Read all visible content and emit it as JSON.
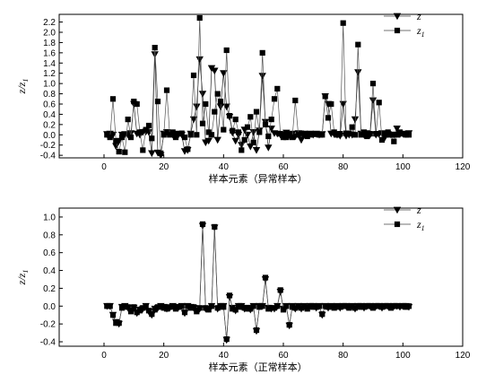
{
  "chart_data": [
    {
      "type": "line",
      "ylabel": "z/z_1",
      "xlabel": "样本元素（异常样本）",
      "xlim": [
        -15,
        120
      ],
      "ylim": [
        -0.45,
        2.35
      ],
      "xticks": [
        0,
        20,
        40,
        60,
        80,
        100,
        120
      ],
      "yticks": [
        -0.4,
        -0.2,
        0.0,
        0.2,
        0.4,
        0.6,
        0.8,
        1.0,
        1.2,
        1.4,
        1.6,
        1.8,
        2.0,
        2.2
      ],
      "legend_position": "top-right",
      "series": [
        {
          "name": "z",
          "marker": "triangle-down",
          "x": [
            1,
            2,
            3,
            4,
            5,
            6,
            7,
            8,
            9,
            10,
            11,
            12,
            13,
            14,
            15,
            16,
            17,
            18,
            19,
            20,
            21,
            22,
            23,
            24,
            25,
            26,
            27,
            28,
            29,
            30,
            31,
            32,
            33,
            34,
            35,
            36,
            37,
            38,
            39,
            40,
            41,
            42,
            43,
            44,
            45,
            46,
            47,
            48,
            49,
            50,
            51,
            52,
            53,
            54,
            55,
            56,
            57,
            58,
            59,
            60,
            61,
            62,
            63,
            64,
            65,
            66,
            67,
            68,
            69,
            70,
            71,
            72,
            73,
            74,
            75,
            76,
            77,
            78,
            79,
            80,
            81,
            82,
            83,
            84,
            85,
            86,
            87,
            88,
            89,
            90,
            91,
            92,
            93,
            94,
            95,
            96,
            97,
            98,
            99,
            100,
            101,
            102
          ],
          "values": [
            0.01,
            0.02,
            0.0,
            -0.22,
            -0.12,
            0.0,
            0.01,
            0.0,
            0.03,
            0.6,
            0.02,
            0.0,
            0.05,
            0.06,
            0.05,
            -0.36,
            1.57,
            -0.35,
            -0.4,
            0.02,
            0.05,
            0.03,
            0.0,
            0.02,
            0.01,
            0.0,
            -0.32,
            -0.3,
            0.02,
            0.3,
            0.55,
            1.47,
            0.8,
            -0.15,
            -0.12,
            1.3,
            1.25,
            -0.1,
            0.55,
            1.2,
            0.55,
            0.35,
            0.04,
            -0.12,
            0.0,
            -0.2,
            0.1,
            0.0,
            -0.23,
            0.05,
            -0.3,
            0.08,
            1.15,
            0.25,
            -0.25,
            0.12,
            0.03,
            0.02,
            0.0,
            0.0,
            0.04,
            0.0,
            0.02,
            -0.03,
            0.03,
            -0.1,
            0.02,
            0.01,
            0.02,
            0.0,
            0.02,
            0.0,
            0.01,
            0.75,
            0.6,
            0.02,
            0.01,
            0.0,
            -0.02,
            0.6,
            -0.02,
            0.0,
            0.0,
            0.3,
            1.22,
            0.02,
            0.0,
            0.03,
            0.0,
            0.67,
            0.0,
            0.01,
            0.03,
            -0.05,
            0.01,
            0.0,
            0.0,
            0.12,
            0.01,
            0.02,
            0.01,
            0.03
          ]
        },
        {
          "name": "z_1",
          "marker": "square",
          "x": [
            1,
            2,
            3,
            4,
            5,
            6,
            7,
            8,
            9,
            10,
            11,
            12,
            13,
            14,
            15,
            16,
            17,
            18,
            19,
            20,
            21,
            22,
            23,
            24,
            25,
            26,
            27,
            28,
            29,
            30,
            31,
            32,
            33,
            34,
            35,
            36,
            37,
            38,
            39,
            40,
            41,
            42,
            43,
            44,
            45,
            46,
            47,
            48,
            49,
            50,
            51,
            52,
            53,
            54,
            55,
            56,
            57,
            58,
            59,
            60,
            61,
            62,
            63,
            64,
            65,
            66,
            67,
            68,
            69,
            70,
            71,
            72,
            73,
            74,
            75,
            76,
            77,
            78,
            79,
            80,
            81,
            82,
            83,
            84,
            85,
            86,
            87,
            88,
            89,
            90,
            91,
            92,
            93,
            94,
            95,
            96,
            97,
            98,
            99,
            100,
            101,
            102
          ],
          "values": [
            0.0,
            -0.05,
            0.7,
            -0.12,
            -0.33,
            -0.05,
            -0.34,
            0.3,
            -0.05,
            0.65,
            0.6,
            0.05,
            -0.3,
            0.1,
            0.18,
            -0.07,
            1.7,
            0.65,
            -0.36,
            0.0,
            0.87,
            0.0,
            0.05,
            -0.05,
            0.02,
            0.03,
            -0.05,
            -0.28,
            0.0,
            1.16,
            0.0,
            2.28,
            0.22,
            0.6,
            0.05,
            0.0,
            0.45,
            0.8,
            0.65,
            0.1,
            1.65,
            0.37,
            0.08,
            0.3,
            0.05,
            -0.3,
            -0.1,
            0.15,
            0.35,
            -0.15,
            0.45,
            0.05,
            1.6,
            0.2,
            -0.03,
            0.3,
            0.7,
            0.9,
            0.02,
            -0.05,
            -0.05,
            -0.02,
            -0.05,
            0.67,
            0.0,
            0.03,
            0.0,
            -0.03,
            0.0,
            0.01,
            0.02,
            0.0,
            0.0,
            0.75,
            0.33,
            0.6,
            0.05,
            0.0,
            0.02,
            2.18,
            0.03,
            0.03,
            0.15,
            0.0,
            1.76,
            0.0,
            0.05,
            -0.03,
            0.02,
            1.0,
            0.02,
            0.63,
            -0.1,
            0.0,
            0.05,
            0.0,
            -0.13,
            0.0,
            0.05,
            0.02,
            0.0,
            0.0
          ]
        }
      ]
    },
    {
      "type": "line",
      "ylabel": "z/z_1",
      "xlabel": "样本元素（正常样本）",
      "xlim": [
        -15,
        120
      ],
      "ylim": [
        -0.45,
        1.1
      ],
      "xticks": [
        0,
        20,
        40,
        60,
        80,
        100,
        120
      ],
      "yticks": [
        -0.4,
        -0.2,
        0.0,
        0.2,
        0.4,
        0.6,
        0.8,
        1.0
      ],
      "legend_position": "top-right",
      "series": [
        {
          "name": "z",
          "marker": "triangle-down",
          "x": [
            1,
            2,
            3,
            4,
            5,
            6,
            7,
            8,
            9,
            10,
            11,
            12,
            13,
            14,
            15,
            16,
            17,
            18,
            19,
            20,
            21,
            22,
            23,
            24,
            25,
            26,
            27,
            28,
            29,
            30,
            31,
            32,
            33,
            34,
            35,
            36,
            37,
            38,
            39,
            40,
            41,
            42,
            43,
            44,
            45,
            46,
            47,
            48,
            49,
            50,
            51,
            52,
            53,
            54,
            55,
            56,
            57,
            58,
            59,
            60,
            61,
            62,
            63,
            64,
            65,
            66,
            67,
            68,
            69,
            70,
            71,
            72,
            73,
            74,
            75,
            76,
            77,
            78,
            79,
            80,
            81,
            82,
            83,
            84,
            85,
            86,
            87,
            88,
            89,
            90,
            91,
            92,
            93,
            94,
            95,
            96,
            97,
            98,
            99,
            100,
            101,
            102
          ],
          "values": [
            0.0,
            0.0,
            -0.1,
            -0.18,
            -0.2,
            -0.01,
            0.0,
            -0.02,
            -0.05,
            -0.02,
            -0.08,
            -0.04,
            -0.03,
            0.0,
            -0.06,
            -0.1,
            -0.03,
            -0.02,
            0.0,
            -0.01,
            -0.03,
            -0.02,
            0.0,
            -0.02,
            -0.01,
            0.0,
            -0.08,
            0.0,
            -0.01,
            -0.02,
            -0.05,
            -0.03,
            0.9,
            -0.03,
            -0.03,
            0.0,
            0.88,
            -0.03,
            0.0,
            0.0,
            -0.38,
            0.1,
            -0.02,
            -0.05,
            0.0,
            0.0,
            -0.03,
            -0.02,
            -0.04,
            0.0,
            -0.28,
            0.0,
            0.0,
            0.3,
            -0.02,
            -0.03,
            -0.03,
            0.0,
            0.16,
            -0.03,
            0.0,
            -0.22,
            0.0,
            -0.03,
            0.0,
            -0.03,
            0.0,
            -0.02,
            0.0,
            0.0,
            -0.02,
            0.0,
            -0.1,
            0.0,
            -0.02,
            0.0,
            -0.01,
            0.0,
            -0.02,
            0.0,
            0.0,
            -0.01,
            0.0,
            -0.03,
            0.0,
            0.0,
            -0.02,
            0.0,
            0.0,
            -0.01,
            0.0,
            0.0,
            -0.02,
            0.0,
            0.0,
            -0.01,
            0.0,
            0.0,
            -0.01,
            0.0,
            0.0,
            -0.01
          ]
        },
        {
          "name": "z_1",
          "marker": "square",
          "x": [
            1,
            2,
            3,
            4,
            5,
            6,
            7,
            8,
            9,
            10,
            11,
            12,
            13,
            14,
            15,
            16,
            17,
            18,
            19,
            20,
            21,
            22,
            23,
            24,
            25,
            26,
            27,
            28,
            29,
            30,
            31,
            32,
            33,
            34,
            35,
            36,
            37,
            38,
            39,
            40,
            41,
            42,
            43,
            44,
            45,
            46,
            47,
            48,
            49,
            50,
            51,
            52,
            53,
            54,
            55,
            56,
            57,
            58,
            59,
            60,
            61,
            62,
            63,
            64,
            65,
            66,
            67,
            68,
            69,
            70,
            71,
            72,
            73,
            74,
            75,
            76,
            77,
            78,
            79,
            80,
            81,
            82,
            83,
            84,
            85,
            86,
            87,
            88,
            89,
            90,
            91,
            92,
            93,
            94,
            95,
            96,
            97,
            98,
            99,
            100,
            101,
            102
          ],
          "values": [
            0.0,
            0.0,
            -0.1,
            -0.19,
            -0.19,
            -0.02,
            0.0,
            -0.01,
            -0.06,
            -0.01,
            -0.07,
            -0.05,
            -0.02,
            0.0,
            -0.05,
            -0.09,
            -0.04,
            -0.01,
            0.0,
            -0.02,
            -0.03,
            -0.01,
            0.0,
            -0.03,
            -0.01,
            0.0,
            -0.07,
            0.0,
            -0.02,
            -0.01,
            -0.06,
            -0.02,
            0.92,
            -0.02,
            -0.04,
            0.0,
            0.89,
            -0.02,
            0.0,
            -0.01,
            -0.37,
            0.12,
            -0.03,
            -0.04,
            0.0,
            -0.01,
            -0.02,
            -0.03,
            -0.03,
            0.0,
            -0.27,
            -0.01,
            0.0,
            0.32,
            -0.03,
            -0.02,
            -0.02,
            0.0,
            0.18,
            -0.04,
            0.0,
            -0.21,
            -0.01,
            -0.02,
            0.0,
            -0.02,
            -0.01,
            -0.03,
            0.0,
            -0.01,
            -0.01,
            0.0,
            -0.09,
            0.0,
            -0.01,
            0.0,
            -0.02,
            0.0,
            -0.01,
            0.0,
            0.0,
            -0.02,
            0.0,
            -0.02,
            0.0,
            -0.01,
            -0.01,
            0.0,
            0.0,
            -0.02,
            0.0,
            0.0,
            -0.01,
            0.0,
            0.0,
            -0.02,
            0.0,
            0.0,
            0.0,
            0.0,
            -0.01,
            0.0
          ]
        }
      ]
    }
  ]
}
